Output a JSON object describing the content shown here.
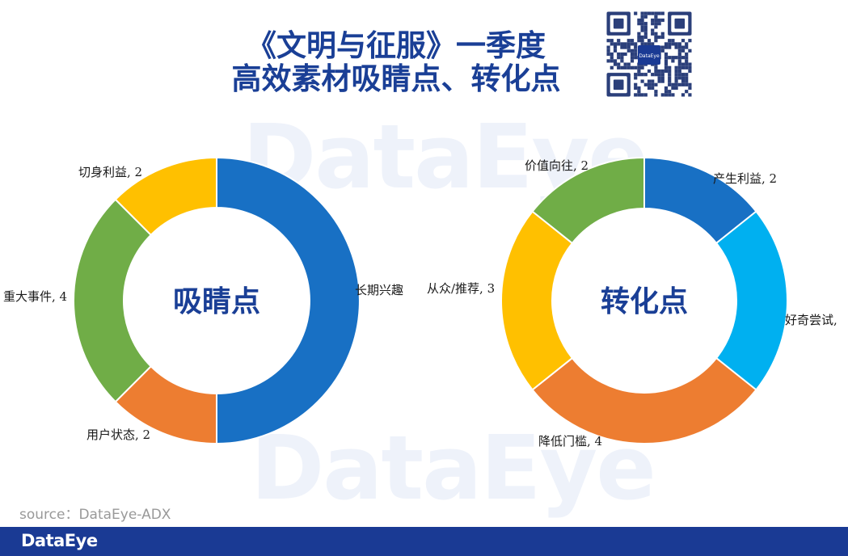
{
  "header": {
    "title_line1": "《文明与征服》一季度",
    "title_line2": "高效素材吸睛点、转化点"
  },
  "qr_center_label": "DataEye",
  "watermark": "DataEye",
  "source": "source：DataEye-ADX",
  "footer": {
    "brand": "DataEye"
  },
  "chart_data": [
    {
      "type": "pie",
      "donut": true,
      "title": "",
      "center_label": "吸睛点",
      "slices": [
        {
          "label": "长期兴趣",
          "value": 8,
          "color": "#1870c4",
          "display": "长期兴趣"
        },
        {
          "label": "用户状态",
          "value": 2,
          "color": "#ed7d31",
          "display": "用户状态, 2"
        },
        {
          "label": "重大事件",
          "value": 4,
          "color": "#70ad47",
          "display": "重大事件, 4"
        },
        {
          "label": "切身利益",
          "value": 2,
          "color": "#ffc000",
          "display": "切身利益, 2"
        }
      ],
      "legend": "none"
    },
    {
      "type": "pie",
      "donut": true,
      "title": "",
      "center_label": "转化点",
      "slices": [
        {
          "label": "产生利益",
          "value": 2,
          "color": "#1870c4",
          "display": "产生利益, 2"
        },
        {
          "label": "好奇尝试",
          "value": 3,
          "color": "#00b0f0",
          "display": "好奇尝试,"
        },
        {
          "label": "降低门槛",
          "value": 4,
          "color": "#ed7d31",
          "display": "降低门槛, 4"
        },
        {
          "label": "从众/推荐",
          "value": 3,
          "color": "#ffc000",
          "display": "从众/推荐, 3"
        },
        {
          "label": "价值向往",
          "value": 2,
          "color": "#70ad47",
          "display": "价值向往, 2"
        }
      ],
      "legend": "none"
    }
  ]
}
